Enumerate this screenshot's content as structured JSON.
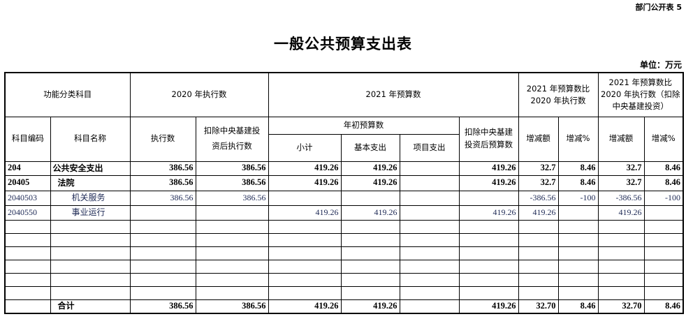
{
  "tag": "部门公开表 5",
  "title": "一般公共预算支出表",
  "unit": "单位：万元",
  "header": {
    "func_class": "功能分类科目",
    "exec2020": "2020 年执行数",
    "budget2021": "2021 年预算数",
    "cmp1": "2021 年预算数比2020 年执行数",
    "cmp2": "2021 年预算数比2020 年执行数（扣除中央基建投资）",
    "code": "科目编码",
    "name": "科目名称",
    "exec": "执行数",
    "exec_ex": "扣除中央基建投资后执行数",
    "initial": "年初预算数",
    "ex_budget": "扣除中央基建投资后预算数",
    "subtotal": "小计",
    "basic": "基本支出",
    "project": "项目支出",
    "inc_amt": "增减额",
    "inc_pct": "增减%",
    "inc_amt2": "增减额",
    "inc_pct2": "增减%"
  },
  "rows": [
    {
      "code": "204",
      "name": "公共安全支出",
      "c": [
        "386.56",
        "386.56",
        "419.26",
        "419.26",
        "",
        "419.26",
        "32.7",
        "8.46",
        "32.7",
        "8.46"
      ]
    },
    {
      "code": "20405",
      "name": "法院",
      "c": [
        "386.56",
        "386.56",
        "419.26",
        "419.26",
        "",
        "419.26",
        "32.7",
        "8.46",
        "32.7",
        "8.46"
      ]
    },
    {
      "code": "2040503",
      "name": "机关服务",
      "c": [
        "386.56",
        "386.56",
        "",
        "",
        "",
        "",
        "-386.56",
        "-100",
        "-386.56",
        "-100"
      ]
    },
    {
      "code": "2040550",
      "name": "事业运行",
      "c": [
        "",
        "",
        "419.26",
        "419.26",
        "",
        "419.26",
        "419.26",
        "",
        "419.26",
        ""
      ]
    }
  ],
  "total": {
    "label": "合计",
    "c": [
      "386.56",
      "386.56",
      "419.26",
      "419.26",
      "",
      "419.26",
      "32.70",
      "8.46",
      "32.70",
      "8.46"
    ]
  }
}
